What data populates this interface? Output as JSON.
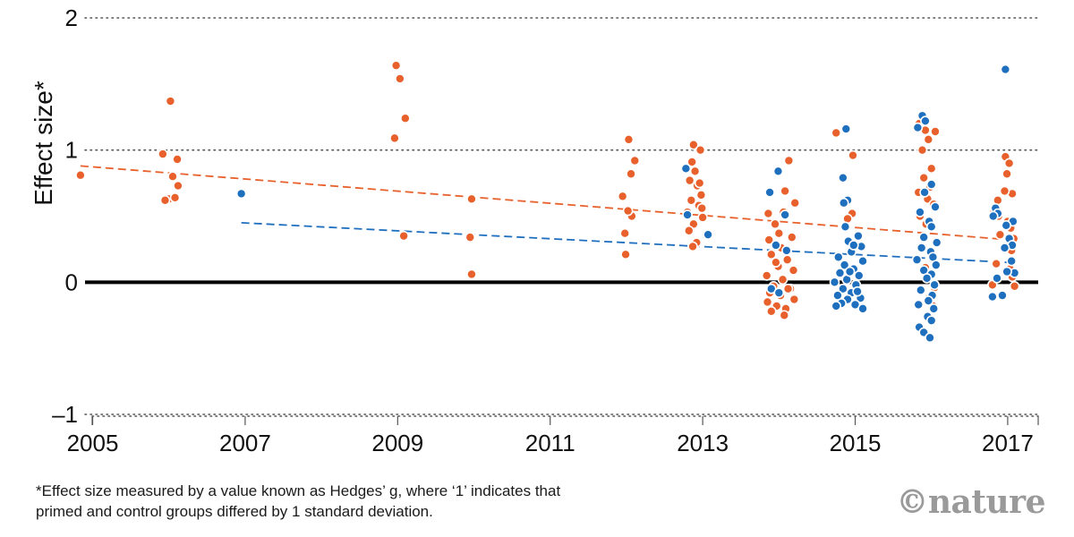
{
  "chart_data": {
    "type": "scatter",
    "title": "",
    "xlabel": "",
    "ylabel": "Effect size*",
    "xlim": [
      2004.9,
      2017.4
    ],
    "ylim": [
      -1,
      2
    ],
    "x_ticks": [
      2005,
      2007,
      2009,
      2011,
      2013,
      2015,
      2017
    ],
    "x_tick_labels": [
      "2005",
      "2007",
      "2009",
      "2011",
      "2013",
      "2015",
      "2017"
    ],
    "y_ticks": [
      -1,
      0,
      1,
      2
    ],
    "y_tick_labels": [
      "–1",
      "0",
      "1",
      "2"
    ],
    "grid": "dotted horizontal",
    "colors": {
      "orange": "#e8612c",
      "blue": "#1f6fbf",
      "zero_line": "#000000"
    },
    "series": [
      {
        "name": "orange",
        "color": "#e8612c",
        "points": [
          [
            2004.84,
            0.81
          ],
          [
            2005.92,
            0.97
          ],
          [
            2006.02,
            1.37
          ],
          [
            2006.11,
            0.93
          ],
          [
            2006.05,
            0.8
          ],
          [
            2006.12,
            0.73
          ],
          [
            2006.0,
            0.63
          ],
          [
            2006.08,
            0.64
          ],
          [
            2005.95,
            0.62
          ],
          [
            2008.98,
            1.64
          ],
          [
            2009.03,
            1.54
          ],
          [
            2009.1,
            1.24
          ],
          [
            2008.96,
            1.09
          ],
          [
            2009.08,
            0.35
          ],
          [
            2009.97,
            0.63
          ],
          [
            2009.95,
            0.34
          ],
          [
            2009.97,
            0.06
          ],
          [
            2012.03,
            1.08
          ],
          [
            2012.11,
            0.92
          ],
          [
            2012.06,
            0.82
          ],
          [
            2011.95,
            0.65
          ],
          [
            2012.07,
            0.5
          ],
          [
            2011.98,
            0.37
          ],
          [
            2011.99,
            0.21
          ],
          [
            2012.02,
            0.54
          ],
          [
            2012.88,
            1.04
          ],
          [
            2012.97,
            1.0
          ],
          [
            2012.86,
            0.91
          ],
          [
            2012.9,
            0.84
          ],
          [
            2012.83,
            0.77
          ],
          [
            2012.93,
            0.73
          ],
          [
            2012.98,
            0.66
          ],
          [
            2012.85,
            0.62
          ],
          [
            2012.95,
            0.58
          ],
          [
            2012.8,
            0.53
          ],
          [
            2013.0,
            0.49
          ],
          [
            2012.88,
            0.44
          ],
          [
            2012.82,
            0.39
          ],
          [
            2012.92,
            0.3
          ],
          [
            2012.87,
            0.27
          ],
          [
            2012.96,
            0.75
          ],
          [
            2012.99,
            0.56
          ],
          [
            2014.13,
            0.92
          ],
          [
            2014.08,
            0.69
          ],
          [
            2014.21,
            0.6
          ],
          [
            2014.06,
            0.53
          ],
          [
            2013.86,
            0.52
          ],
          [
            2013.95,
            0.44
          ],
          [
            2014.0,
            0.37
          ],
          [
            2014.17,
            0.34
          ],
          [
            2013.87,
            0.32
          ],
          [
            2014.03,
            0.26
          ],
          [
            2013.9,
            0.21
          ],
          [
            2014.11,
            0.17
          ],
          [
            2013.99,
            0.12
          ],
          [
            2014.19,
            0.09
          ],
          [
            2013.84,
            0.05
          ],
          [
            2014.05,
            0.02
          ],
          [
            2013.93,
            -0.03
          ],
          [
            2014.15,
            -0.05
          ],
          [
            2013.88,
            -0.08
          ],
          [
            2014.02,
            -0.1
          ],
          [
            2014.2,
            -0.13
          ],
          [
            2013.85,
            -0.15
          ],
          [
            2013.97,
            -0.18
          ],
          [
            2014.09,
            -0.2
          ],
          [
            2013.9,
            -0.22
          ],
          [
            2014.07,
            -0.25
          ],
          [
            2014.12,
            -0.05
          ],
          [
            2013.96,
            0.15
          ],
          [
            2014.75,
            1.13
          ],
          [
            2014.97,
            0.96
          ],
          [
            2014.88,
            0.61
          ],
          [
            2014.96,
            0.52
          ],
          [
            2014.9,
            0.48
          ],
          [
            2015.84,
            1.2
          ],
          [
            2015.92,
            1.15
          ],
          [
            2016.05,
            1.14
          ],
          [
            2015.96,
            1.08
          ],
          [
            2015.88,
            1.0
          ],
          [
            2016.0,
            0.86
          ],
          [
            2015.9,
            0.79
          ],
          [
            2015.98,
            0.72
          ],
          [
            2015.83,
            0.68
          ],
          [
            2015.95,
            0.63
          ],
          [
            2016.03,
            0.59
          ],
          [
            2015.85,
            0.5
          ],
          [
            2015.93,
            0.44
          ],
          [
            2016.06,
            0.31
          ],
          [
            2015.88,
            0.26
          ],
          [
            2016.01,
            0.18
          ],
          [
            2015.92,
            0.11
          ],
          [
            2016.04,
            -0.04
          ],
          [
            2015.97,
            -0.12
          ],
          [
            2016.02,
            -0.18
          ]
        ]
      },
      {
        "name": "orange",
        "color": "#e8612c",
        "points": [
          [
            2016.97,
            0.95
          ],
          [
            2017.02,
            0.9
          ],
          [
            2016.99,
            0.82
          ],
          [
            2017.06,
            0.67
          ],
          [
            2016.96,
            0.69
          ],
          [
            2016.82,
            0.53
          ],
          [
            2016.88,
            0.5
          ],
          [
            2017.0,
            0.46
          ],
          [
            2017.04,
            0.41
          ],
          [
            2016.9,
            0.36
          ],
          [
            2017.08,
            0.33
          ],
          [
            2017.05,
            0.24
          ],
          [
            2016.85,
            0.14
          ],
          [
            2017.03,
            0.1
          ],
          [
            2017.06,
            0.04
          ],
          [
            2016.8,
            -0.02
          ],
          [
            2017.09,
            -0.03
          ],
          [
            2016.87,
            0.62
          ]
        ]
      },
      {
        "name": "blue",
        "color": "#1f6fbf",
        "points": [
          [
            2006.95,
            0.67
          ],
          [
            2012.78,
            0.86
          ],
          [
            2012.8,
            0.51
          ],
          [
            2013.07,
            0.36
          ],
          [
            2013.99,
            0.84
          ],
          [
            2013.88,
            0.68
          ],
          [
            2014.08,
            0.51
          ],
          [
            2013.96,
            0.28
          ],
          [
            2014.1,
            0.24
          ],
          [
            2013.9,
            -0.05
          ],
          [
            2014.0,
            -0.08
          ],
          [
            2014.88,
            1.16
          ],
          [
            2014.84,
            0.79
          ],
          [
            2014.9,
            0.62
          ],
          [
            2014.85,
            0.6
          ],
          [
            2015.04,
            0.35
          ],
          [
            2014.91,
            0.31
          ],
          [
            2015.08,
            0.27
          ],
          [
            2014.95,
            0.23
          ],
          [
            2014.78,
            0.19
          ],
          [
            2015.1,
            0.16
          ],
          [
            2014.86,
            0.13
          ],
          [
            2014.98,
            0.1
          ],
          [
            2014.8,
            0.07
          ],
          [
            2015.05,
            0.05
          ],
          [
            2014.89,
            0.02
          ],
          [
            2014.73,
            0.0
          ],
          [
            2015.01,
            -0.02
          ],
          [
            2014.84,
            -0.05
          ],
          [
            2014.95,
            -0.08
          ],
          [
            2014.77,
            -0.1
          ],
          [
            2015.07,
            -0.12
          ],
          [
            2014.9,
            -0.13
          ],
          [
            2014.82,
            -0.16
          ],
          [
            2015.0,
            -0.17
          ],
          [
            2014.75,
            -0.18
          ],
          [
            2015.1,
            -0.2
          ],
          [
            2014.93,
            0.08
          ],
          [
            2015.03,
            -0.07
          ],
          [
            2014.87,
            0.42
          ],
          [
            2014.98,
            0.28
          ]
        ]
      },
      {
        "name": "blue",
        "color": "#1f6fbf",
        "points": [
          [
            2015.88,
            1.26
          ],
          [
            2015.92,
            1.22
          ],
          [
            2015.82,
            1.17
          ],
          [
            2016.0,
            0.74
          ],
          [
            2015.91,
            0.68
          ],
          [
            2016.05,
            0.57
          ],
          [
            2015.85,
            0.53
          ],
          [
            2015.97,
            0.46
          ],
          [
            2015.9,
            0.34
          ],
          [
            2016.07,
            0.3
          ],
          [
            2015.87,
            0.26
          ],
          [
            2015.99,
            0.23
          ],
          [
            2016.02,
            0.19
          ],
          [
            2015.81,
            0.17
          ],
          [
            2016.06,
            0.13
          ],
          [
            2015.9,
            0.09
          ],
          [
            2016.0,
            0.06
          ],
          [
            2015.94,
            0.03
          ],
          [
            2016.04,
            -0.02
          ],
          [
            2015.86,
            -0.06
          ],
          [
            2016.01,
            -0.1
          ],
          [
            2015.96,
            -0.14
          ],
          [
            2015.83,
            -0.17
          ],
          [
            2016.03,
            -0.2
          ],
          [
            2015.95,
            -0.26
          ],
          [
            2016.0,
            -0.29
          ],
          [
            2015.84,
            -0.34
          ],
          [
            2015.9,
            -0.38
          ],
          [
            2015.98,
            -0.42
          ],
          [
            2016.0,
            0.42
          ]
        ]
      },
      {
        "name": "blue",
        "color": "#1f6fbf",
        "points": [
          [
            2016.97,
            1.61
          ],
          [
            2016.84,
            0.56
          ],
          [
            2016.87,
            0.52
          ],
          [
            2016.81,
            0.5
          ],
          [
            2017.07,
            0.46
          ],
          [
            2016.98,
            0.43
          ],
          [
            2017.02,
            0.33
          ],
          [
            2017.06,
            0.28
          ],
          [
            2016.96,
            0.26
          ],
          [
            2017.09,
            0.07
          ],
          [
            2016.99,
            0.08
          ],
          [
            2016.86,
            0.03
          ],
          [
            2016.93,
            -0.1
          ],
          [
            2016.8,
            -0.11
          ],
          [
            2017.05,
            0.16
          ]
        ]
      }
    ],
    "trend_lines": [
      {
        "name": "orange-trend",
        "color": "#e8612c",
        "x": [
          2004.84,
          2017.05
        ],
        "y": [
          0.88,
          0.32
        ]
      },
      {
        "name": "blue-trend",
        "color": "#1f6fbf",
        "x": [
          2006.95,
          2017.0
        ],
        "y": [
          0.45,
          0.15
        ]
      }
    ],
    "footnote_lines": [
      "*Effect size measured by a value known as Hedges’ g, where ‘1’ indicates that",
      "primed and control groups differed by 1 standard deviation."
    ],
    "brand": "©nature"
  }
}
